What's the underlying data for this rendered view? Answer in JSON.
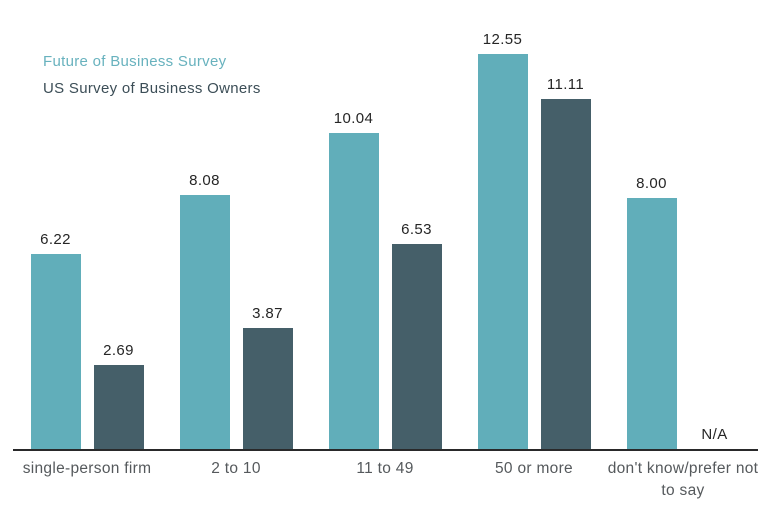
{
  "legend": {
    "series1_label": "Future of Business Survey",
    "series2_label": "US Survey of Business Owners"
  },
  "colors": {
    "series1": "#61aeba",
    "series2": "#455f69",
    "axis": "#29292a",
    "value_label": "#262626",
    "category_label": "#55595c",
    "legend_series1_text": "#68b2be",
    "legend_series2_text": "#3c4e57"
  },
  "chart_data": {
    "type": "bar",
    "title": "",
    "xlabel": "",
    "ylabel": "",
    "categories": [
      "single-person firm",
      "2 to 10",
      "11 to 49",
      "50 or more",
      "don't know/prefer not to say"
    ],
    "series": [
      {
        "name": "Future of Business Survey",
        "values": [
          6.22,
          8.08,
          10.04,
          12.55,
          8.0
        ],
        "value_labels": [
          "6.22",
          "8.08",
          "10.04",
          "12.55",
          "8.00"
        ]
      },
      {
        "name": "US Survey of Business Owners",
        "values": [
          2.69,
          3.87,
          6.53,
          11.11,
          null
        ],
        "value_labels": [
          "2.69",
          "3.87",
          "6.53",
          "11.11",
          "N/A"
        ]
      }
    ],
    "ylim": [
      0,
      14
    ],
    "grid": false,
    "y_axis_hidden": true,
    "legend_position": "top-left",
    "value_labels_shown": true
  }
}
